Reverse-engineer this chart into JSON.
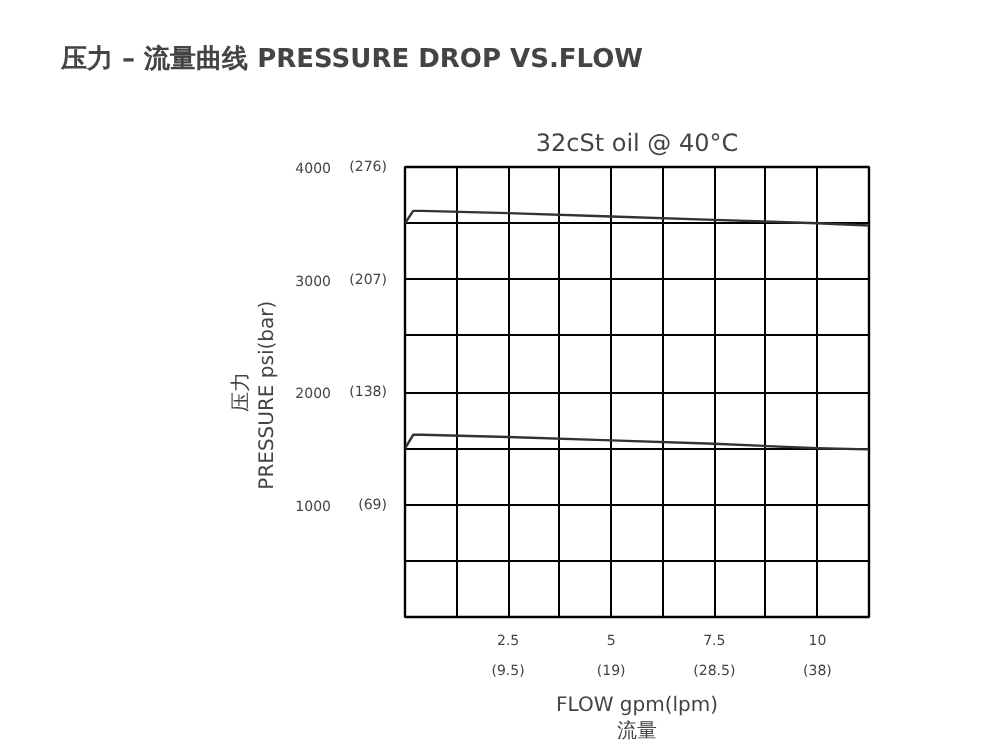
{
  "chart_data": {
    "type": "line",
    "title": "压力 – 流量曲线 PRESSURE DROP VS.FLOW",
    "subtitle": "32cSt oil @ 40°C",
    "xlabel": "FLOW gpm(lpm)\n流量",
    "ylabel": "压力\nPRESSURE  psi(bar)",
    "series": [
      {
        "color": "#333333",
        "x": [
          0,
          0.2,
          0.4,
          2.5,
          5,
          7.5,
          10,
          11.25
        ],
        "values": [
          3500,
          3610,
          3610,
          3590,
          3560,
          3530,
          3500,
          3480
        ]
      },
      {
        "color": "#333333",
        "x": [
          0,
          0.2,
          0.4,
          2.5,
          5,
          7.5,
          10,
          11.25
        ],
        "values": [
          1500,
          1620,
          1620,
          1600,
          1570,
          1540,
          1500,
          1490
        ]
      }
    ],
    "xlim": [
      0,
      11.25
    ],
    "ylim": [
      0,
      4000
    ],
    "xticks": [
      {
        "value": 1.25,
        "label": null
      },
      2.5,
      {
        "value": 3.75,
        "label": null
      },
      5,
      {
        "value": 6.25,
        "label": null
      },
      7.5,
      {
        "value": 8.75,
        "label": null
      },
      10
    ],
    "x2lim": [
      0,
      42.75
    ],
    "x2ticks": [
      {
        "value": 9.5,
        "label": "(9.5)"
      },
      {
        "value": 19,
        "label": "(19)"
      },
      {
        "value": 28.5,
        "label": "(28.5)"
      },
      {
        "value": 38,
        "label": "(38)"
      }
    ],
    "yticks": [
      {
        "value": 500,
        "label": null
      },
      1000,
      {
        "value": 1500,
        "label": null
      },
      2000,
      {
        "value": 2500,
        "label": null
      },
      3000,
      {
        "value": 3500,
        "label": null
      },
      4000
    ],
    "y2lim": [
      0,
      276
    ],
    "y2ticks": [
      {
        "value": 69,
        "label": "(69)"
      },
      {
        "value": 138,
        "label": "(138)"
      },
      {
        "value": 207,
        "label": "(207)"
      },
      {
        "value": 276,
        "label": "(276)"
      }
    ],
    "grid": true,
    "marker": "none",
    "line_style": "solid"
  }
}
